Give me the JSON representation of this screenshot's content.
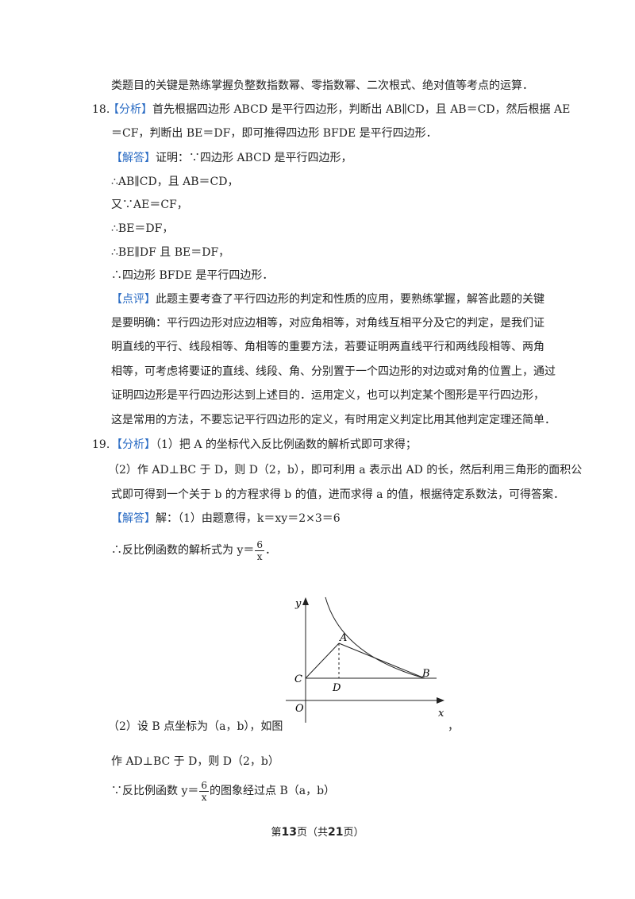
{
  "lines": {
    "l1": "类题目的关键是熟练掌握负整数指数幂、零指数幂、二次根式、绝对值等考点的运算．",
    "q18_num": "18.",
    "q18_tag": "【分析】",
    "q18_l1": "首先根据四边形 ABCD 是平行四边形，判断出 AB∥CD，且 AB＝CD，然后根据 AE",
    "q18_l2": "＝CF，判断出 BE＝DF，即可推得四边形 BFDE 是平行四边形．",
    "q18_ans_tag": "【解答】",
    "q18_ans": "证明：∵四边形 ABCD 是平行四边形，",
    "q18_s1": "∴AB∥CD，且 AB＝CD，",
    "q18_s2": "又∵AE＝CF，",
    "q18_s3": "∴BE＝DF，",
    "q18_s4": "∴BE∥DF 且 BE＝DF，",
    "q18_s5": "∴四边形 BFDE 是平行四边形．",
    "q18_rev_tag": "【点评】",
    "q18_r1": "此题主要考查了平行四边形的判定和性质的应用，要熟练掌握，解答此题的关键",
    "q18_r2": "是要明确：平行四边形对应边相等，对应角相等，对角线互相平分及它的判定，是我们证",
    "q18_r3": "明直线的平行、线段相等、角相等的重要方法，若要证明两直线平行和两线段相等、两角",
    "q18_r4": "相等，可考虑将要证的直线、线段、角、分别置于一个四边形的对边或对角的位置上，通过",
    "q18_r5": "证明四边形是平行四边形达到上述目的．运用定义，也可以判定某个图形是平行四边形，",
    "q18_r6": "这是常用的方法，不要忘记平行四边形的定义，有时用定义判定比用其他判定定理还简单．",
    "q19_num": "19.",
    "q19_tag": "【分析】",
    "q19_l1": "（1）把 A 的坐标代入反比例函数的解析式即可求得；",
    "q19_l2": "（2）作 AD⊥BC 于 D，则 D（2，b），即可利用 a 表示出 AD 的长，然后利用三角形的面积公",
    "q19_l3": "式即可得到一个关于 b 的方程求得 b 的值，进而求得 a 的值，根据待定系数法，可得答案．",
    "q19_ans_tag": "【解答】",
    "q19_ans": "解：（1）由题意得，k＝xy＝2×3＝6",
    "q19_res_pre": "∴反比例函数的解析式为 y＝",
    "q19_res_post": "．",
    "frac_num": "6",
    "frac_den": "x",
    "q19_p2": "（2）设 B 点坐标为（a，b），如图",
    "q19_p2_end": "，",
    "q19_p3": "作 AD⊥BC 于 D，则 D（2，b）",
    "q19_p4_pre": "∵反比例函数 y＝",
    "q19_p4_post": "的图象经过点 B（a，b）"
  },
  "figure": {
    "label_y": "y",
    "label_x": "x",
    "label_o": "O",
    "label_c": "C",
    "label_d": "D",
    "label_a": "A",
    "label_b": "B"
  },
  "footer": {
    "pre": "第",
    "page": "13",
    "mid": "页（共",
    "total": "21",
    "post": "页）"
  }
}
